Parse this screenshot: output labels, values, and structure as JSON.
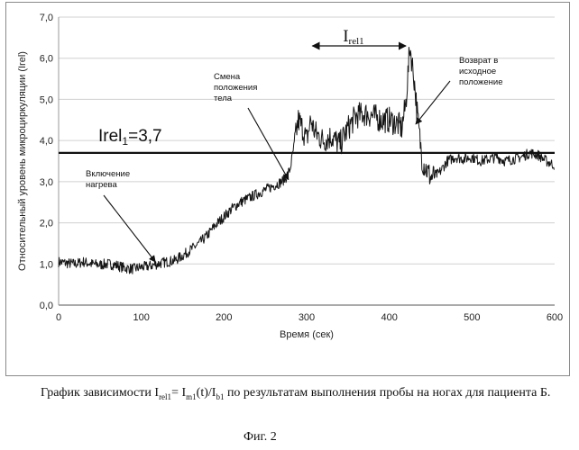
{
  "chart_data": {
    "type": "line",
    "xlabel": "Время (сек)",
    "ylabel": "Относительный уровень микроциркуляции (Irel)",
    "xlim": [
      0,
      600
    ],
    "ylim": [
      0,
      7
    ],
    "xticks": [
      "0",
      "100",
      "200",
      "300",
      "400",
      "500",
      "600"
    ],
    "yticks": [
      "0,0",
      "1,0",
      "2,0",
      "3,0",
      "4,0",
      "5,0",
      "6,0",
      "7,0"
    ],
    "grid": "horizontal",
    "threshold": {
      "value": 3.7,
      "label_main": "Irel",
      "label_sub": "1",
      "label_value": "=3,7"
    },
    "range_label": {
      "main": "I",
      "sub": "rel1",
      "from": 307,
      "to": 420,
      "y": 6.3
    },
    "annotations": [
      {
        "name": "heating-on",
        "lines": [
          "Включение",
          "нагрева"
        ],
        "arrow_to": [
          117,
          1.05
        ]
      },
      {
        "name": "position-change",
        "lines": [
          "Смена",
          "положения",
          "тела"
        ],
        "arrow_to": [
          278,
          3.05
        ]
      },
      {
        "name": "return-to-start",
        "lines": [
          "Возврат в",
          "исходное",
          "положение"
        ],
        "arrow_to": [
          432,
          4.4
        ]
      }
    ],
    "series": [
      {
        "name": "Irel",
        "x": [
          0,
          10,
          20,
          30,
          40,
          50,
          60,
          70,
          80,
          90,
          100,
          110,
          120,
          130,
          140,
          150,
          160,
          170,
          180,
          190,
          200,
          210,
          220,
          230,
          240,
          250,
          260,
          270,
          275,
          280,
          285,
          290,
          295,
          300,
          305,
          310,
          320,
          330,
          340,
          350,
          360,
          370,
          380,
          390,
          400,
          410,
          415,
          420,
          425,
          430,
          435,
          440,
          445,
          450,
          460,
          470,
          480,
          490,
          500,
          510,
          520,
          530,
          540,
          550,
          560,
          570,
          580,
          590,
          600
        ],
        "values": [
          1.05,
          1.02,
          1.0,
          1.05,
          1.0,
          0.98,
          1.0,
          0.97,
          0.9,
          0.88,
          0.92,
          0.95,
          1.0,
          1.05,
          1.08,
          1.2,
          1.35,
          1.5,
          1.7,
          1.95,
          2.15,
          2.35,
          2.5,
          2.6,
          2.7,
          2.8,
          2.9,
          3.0,
          3.1,
          3.3,
          3.9,
          4.5,
          4.3,
          4.0,
          4.5,
          4.2,
          4.0,
          4.1,
          3.9,
          4.3,
          4.6,
          4.65,
          4.6,
          4.5,
          4.5,
          4.4,
          4.3,
          4.9,
          6.3,
          5.5,
          4.4,
          3.5,
          3.3,
          3.1,
          3.2,
          3.5,
          3.6,
          3.55,
          3.6,
          3.5,
          3.55,
          3.6,
          3.5,
          3.55,
          3.6,
          3.7,
          3.65,
          3.5,
          3.4
        ]
      }
    ]
  },
  "caption": {
    "prefix": "График зависимости ",
    "i_rel": "I",
    "i_rel_sub": "rel1",
    "eq": "= ",
    "i_m": "I",
    "i_m_sub": "m1",
    "mid": "(t)/",
    "i_b": "I",
    "i_b_sub": "b1",
    "suffix": " по результатам выполнения пробы на ногах для пациента Б."
  },
  "figure_label": "Фиг. 2"
}
